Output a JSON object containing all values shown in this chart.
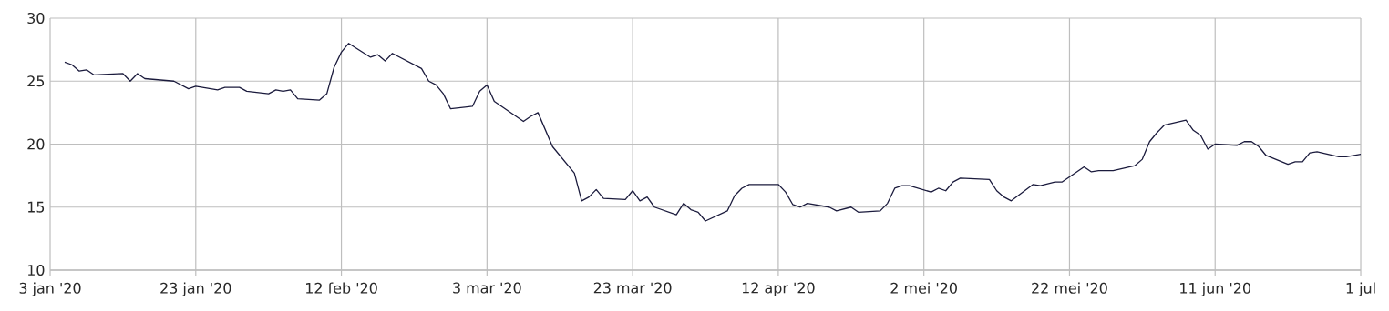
{
  "chart_data": {
    "type": "line",
    "color": "#1b1b3d",
    "grid": true,
    "marker": "none",
    "line_style": "solid",
    "xlim": [
      "2020-01-03",
      "2020-07-01"
    ],
    "ylim": [
      10,
      30
    ],
    "yticks": [
      10,
      15,
      20,
      25,
      30
    ],
    "xticks": [
      {
        "value": "2020-01-03",
        "label": "3 jan '20"
      },
      {
        "value": "2020-01-23",
        "label": "23 jan '20"
      },
      {
        "value": "2020-02-12",
        "label": "12 feb '20"
      },
      {
        "value": "2020-03-03",
        "label": "3 mar '20"
      },
      {
        "value": "2020-03-23",
        "label": "23 mar '20"
      },
      {
        "value": "2020-04-12",
        "label": "12 apr '20"
      },
      {
        "value": "2020-05-02",
        "label": "2 mei '20"
      },
      {
        "value": "2020-05-22",
        "label": "22 mei '20"
      },
      {
        "value": "2020-06-11",
        "label": "11 jun '20"
      },
      {
        "value": "2020-07-01",
        "label": "1 jul"
      }
    ],
    "x": [
      "2020-01-05",
      "2020-01-06",
      "2020-01-07",
      "2020-01-08",
      "2020-01-09",
      "2020-01-13",
      "2020-01-14",
      "2020-01-15",
      "2020-01-16",
      "2020-01-20",
      "2020-01-22",
      "2020-01-23",
      "2020-01-26",
      "2020-01-27",
      "2020-01-29",
      "2020-01-30",
      "2020-02-02",
      "2020-02-03",
      "2020-02-04",
      "2020-02-05",
      "2020-02-06",
      "2020-02-09",
      "2020-02-10",
      "2020-02-11",
      "2020-02-12",
      "2020-02-13",
      "2020-02-16",
      "2020-02-17",
      "2020-02-18",
      "2020-02-19",
      "2020-02-23",
      "2020-02-24",
      "2020-02-25",
      "2020-02-26",
      "2020-02-27",
      "2020-03-01",
      "2020-03-02",
      "2020-03-03",
      "2020-03-04",
      "2020-03-08",
      "2020-03-09",
      "2020-03-10",
      "2020-03-12",
      "2020-03-15",
      "2020-03-16",
      "2020-03-17",
      "2020-03-18",
      "2020-03-19",
      "2020-03-22",
      "2020-03-23",
      "2020-03-24",
      "2020-03-25",
      "2020-03-26",
      "2020-03-29",
      "2020-03-30",
      "2020-03-31",
      "2020-04-01",
      "2020-04-02",
      "2020-04-05",
      "2020-04-06",
      "2020-04-07",
      "2020-04-08",
      "2020-04-12",
      "2020-04-13",
      "2020-04-14",
      "2020-04-15",
      "2020-04-16",
      "2020-04-19",
      "2020-04-20",
      "2020-04-22",
      "2020-04-23",
      "2020-04-26",
      "2020-04-27",
      "2020-04-28",
      "2020-04-29",
      "2020-04-30",
      "2020-05-03",
      "2020-05-04",
      "2020-05-05",
      "2020-05-06",
      "2020-05-07",
      "2020-05-11",
      "2020-05-12",
      "2020-05-13",
      "2020-05-14",
      "2020-05-17",
      "2020-05-18",
      "2020-05-20",
      "2020-05-21",
      "2020-05-24",
      "2020-05-25",
      "2020-05-26",
      "2020-05-28",
      "2020-05-31",
      "2020-06-01",
      "2020-06-02",
      "2020-06-03",
      "2020-06-04",
      "2020-06-07",
      "2020-06-08",
      "2020-06-09",
      "2020-06-10",
      "2020-06-11",
      "2020-06-14",
      "2020-06-15",
      "2020-06-16",
      "2020-06-17",
      "2020-06-18",
      "2020-06-21",
      "2020-06-22",
      "2020-06-23",
      "2020-06-24",
      "2020-06-25",
      "2020-06-28",
      "2020-06-29",
      "2020-07-01"
    ],
    "values": [
      26.5,
      26.3,
      25.8,
      25.9,
      25.5,
      25.6,
      25.0,
      25.6,
      25.2,
      25.0,
      24.4,
      24.6,
      24.3,
      24.5,
      24.5,
      24.2,
      24.0,
      24.3,
      24.2,
      24.3,
      23.6,
      23.5,
      24.0,
      26.1,
      27.3,
      28.0,
      26.9,
      27.1,
      26.6,
      27.2,
      26.0,
      25.0,
      24.7,
      24.0,
      22.8,
      23.0,
      24.2,
      24.7,
      23.4,
      21.8,
      22.2,
      22.5,
      19.8,
      17.7,
      15.5,
      15.8,
      16.4,
      15.7,
      15.6,
      16.3,
      15.5,
      15.8,
      15.0,
      14.4,
      15.3,
      14.8,
      14.6,
      13.9,
      14.7,
      15.9,
      16.5,
      16.8,
      16.8,
      16.2,
      15.2,
      15.0,
      15.3,
      15.0,
      14.7,
      15.0,
      14.6,
      14.7,
      15.3,
      16.5,
      16.7,
      16.7,
      16.2,
      16.5,
      16.3,
      17.0,
      17.3,
      17.2,
      16.3,
      15.8,
      15.5,
      16.8,
      16.7,
      17.0,
      17.0,
      18.2,
      17.8,
      17.9,
      17.9,
      18.3,
      18.8,
      20.2,
      20.9,
      21.5,
      21.9,
      21.1,
      20.7,
      19.6,
      20.0,
      19.9,
      20.2,
      20.2,
      19.8,
      19.1,
      18.4,
      18.6,
      18.6,
      19.3,
      19.4,
      19.0,
      19.0,
      19.2
    ]
  }
}
